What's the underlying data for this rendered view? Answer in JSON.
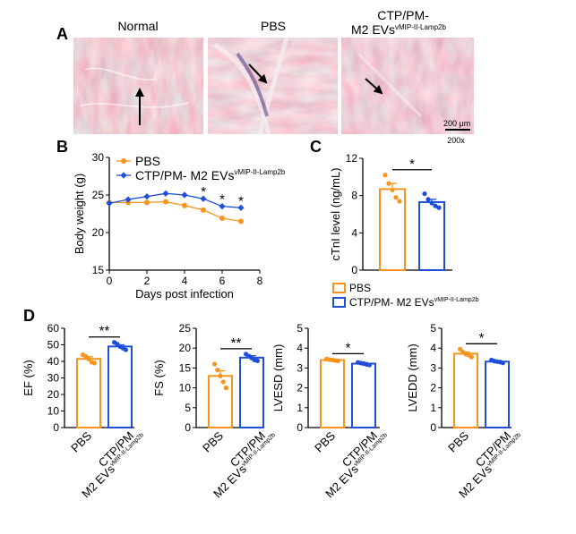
{
  "colors": {
    "pbs": "#f7941d",
    "ev": "#1f4fd8",
    "he_base": "#e8b7c4",
    "he_fiber": "#b9416c",
    "nuclei": "#4b3b84"
  },
  "panel_a": {
    "letter": "A",
    "titles": [
      "Normal",
      "PBS",
      "CTP/PM-",
      "M2 EVs"
    ],
    "sup": "vMIP-II-Lamp2b",
    "scale_bar": "200 μm",
    "magnification": "200x"
  },
  "chart_data": [
    {
      "panel": "B",
      "type": "line",
      "xlabel": "Days post infection",
      "ylabel": "Body weight (g)",
      "xlim": [
        0,
        8
      ],
      "ylim": [
        15,
        30
      ],
      "xticks": [
        0,
        2,
        4,
        6,
        8
      ],
      "yticks": [
        15,
        20,
        25,
        30
      ],
      "series": [
        {
          "name": "PBS",
          "x": [
            0,
            1,
            2,
            3,
            4,
            5,
            6,
            7
          ],
          "values": [
            24.0,
            24.0,
            24.0,
            24.1,
            23.6,
            23.0,
            21.9,
            21.5
          ]
        },
        {
          "name": "CTP/PM- M2 EVs",
          "sup": "vMIP-II-Lamp2b",
          "x": [
            0,
            1,
            2,
            3,
            4,
            5,
            6,
            7
          ],
          "values": [
            23.9,
            24.4,
            24.8,
            25.2,
            25.0,
            24.5,
            23.5,
            23.3
          ]
        }
      ],
      "annotations": [
        {
          "x": 5,
          "text": "*"
        },
        {
          "x": 6,
          "text": "*"
        },
        {
          "x": 7,
          "text": "*"
        }
      ]
    },
    {
      "panel": "C",
      "type": "bar",
      "ylabel": "cTnI level (ng/mL)",
      "ylim": [
        0,
        12
      ],
      "yticks": [
        0,
        4,
        8,
        12
      ],
      "categories": [
        "PBS",
        "CTP/PM- M2 EVs"
      ],
      "values": [
        8.7,
        7.3
      ],
      "errors": [
        0.6,
        0.3
      ],
      "points": [
        [
          10.2,
          9.3,
          8.6,
          7.8,
          7.4
        ],
        [
          8.2,
          7.6,
          7.2,
          6.9,
          6.7
        ]
      ],
      "significance": "*",
      "legend": [
        "PBS",
        "CTP/PM- M2 EVs"
      ],
      "legend_sup": "vMIP-II-Lamp2b"
    },
    {
      "panel": "D",
      "type": "bar",
      "ylabel": "EF (%)",
      "ylim": [
        0,
        60
      ],
      "yticks": [
        0,
        10,
        20,
        30,
        40,
        50,
        60
      ],
      "categories": [
        "PBS",
        "CTP/PM M2 EVs"
      ],
      "values": [
        41.5,
        49.0
      ],
      "errors": [
        1.3,
        1.0
      ],
      "points": [
        [
          44.0,
          43.0,
          41.5,
          39.5,
          39.0
        ],
        [
          51.5,
          50.5,
          49.0,
          48.0,
          47.0
        ]
      ],
      "significance": "**"
    },
    {
      "panel": "",
      "type": "bar",
      "ylabel": "FS (%)",
      "ylim": [
        0,
        25
      ],
      "yticks": [
        0,
        5,
        10,
        15,
        20,
        25
      ],
      "categories": [
        "PBS",
        "CTP/PM M2 EVs"
      ],
      "values": [
        13.0,
        17.6
      ],
      "errors": [
        1.3,
        0.5
      ],
      "points": [
        [
          16.0,
          14.5,
          13.0,
          11.5,
          10.0
        ],
        [
          18.5,
          18.0,
          17.5,
          17.0,
          16.8
        ]
      ],
      "significance": "**"
    },
    {
      "panel": "",
      "type": "bar",
      "ylabel": "LVESD (mm)",
      "ylim": [
        0,
        5
      ],
      "yticks": [
        0,
        1,
        2,
        3,
        4,
        5
      ],
      "categories": [
        "PBS",
        "CTP/PM M2 EVs"
      ],
      "values": [
        3.4,
        3.22
      ],
      "errors": [
        0.03,
        0.04
      ],
      "points": [
        [
          3.45,
          3.42,
          3.4,
          3.38,
          3.36
        ],
        [
          3.28,
          3.25,
          3.22,
          3.18,
          3.15
        ]
      ],
      "significance": "*"
    },
    {
      "panel": "",
      "type": "bar",
      "ylabel": "LVEDD (mm)",
      "ylim": [
        0,
        5
      ],
      "yticks": [
        0,
        1,
        2,
        3,
        4,
        5
      ],
      "categories": [
        "PBS",
        "CTP/PM M2 EVs"
      ],
      "values": [
        3.72,
        3.32
      ],
      "errors": [
        0.08,
        0.04
      ],
      "points": [
        [
          3.95,
          3.8,
          3.7,
          3.65,
          3.55
        ],
        [
          3.4,
          3.35,
          3.32,
          3.3,
          3.26
        ]
      ],
      "significance": "*"
    }
  ],
  "panel_d": {
    "x_labels": [
      "PBS",
      "CTP/PM",
      "M2 EVs"
    ],
    "sup": "vMIP-II-Lamp2b"
  }
}
